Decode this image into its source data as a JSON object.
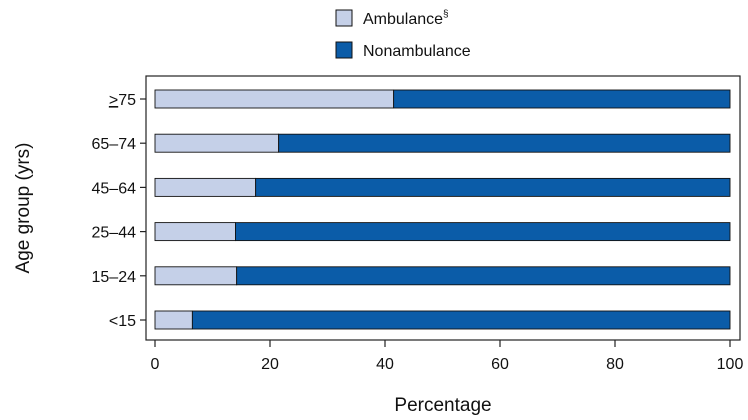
{
  "chart_data": {
    "type": "bar",
    "orientation": "horizontal",
    "stacked": true,
    "categories": [
      "≥75",
      "65–74",
      "45–64",
      "25–44",
      "15–24",
      "<15"
    ],
    "series": [
      {
        "name": "Ambulance",
        "name_superscript": "§",
        "color": "#c5d0e8",
        "values": [
          41.5,
          21.5,
          17.5,
          14,
          14.2,
          6.5
        ]
      },
      {
        "name": "Nonambulance",
        "color": "#0b5ca8",
        "values": [
          58.5,
          78.5,
          82.5,
          86,
          85.8,
          93.5
        ]
      }
    ],
    "xlabel": "Percentage",
    "ylabel": "Age group (yrs)",
    "xlim": [
      0,
      100
    ],
    "xticks": [
      "0",
      "20",
      "40",
      "60",
      "80",
      "100"
    ],
    "legend_position": "top",
    "grid": false
  }
}
